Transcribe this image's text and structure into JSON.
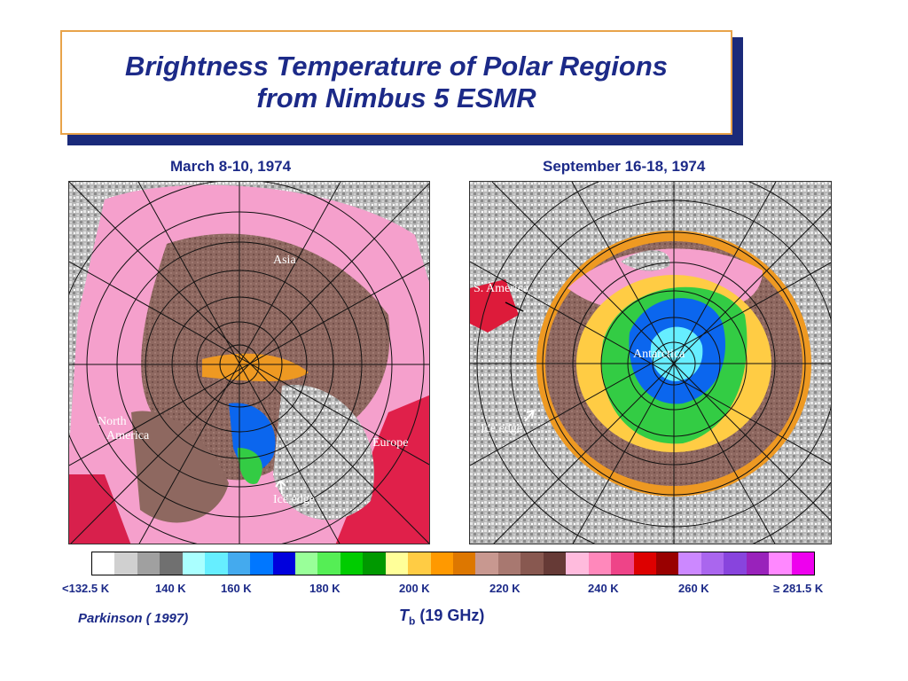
{
  "title": {
    "line1": "Brightness Temperature of Polar Regions",
    "line2": "from Nimbus 5 ESMR"
  },
  "panels": {
    "left": {
      "caption": "March 8-10, 1974",
      "labels": {
        "asia": "Asia",
        "north_america_1": "North",
        "north_america_2": "America",
        "europe": "Europe",
        "ice_edge": "Ice edge"
      }
    },
    "right": {
      "caption": "September 16-18, 1974",
      "labels": {
        "s_america": "S. America",
        "antarctica": "Antarctica",
        "ice_edge": "Ice edge"
      }
    }
  },
  "colorbar": {
    "colors": [
      "#ffffff",
      "#d0d0d0",
      "#a0a0a0",
      "#707070",
      "#aaffff",
      "#66eeff",
      "#44aaee",
      "#0077ff",
      "#0000dd",
      "#99ff99",
      "#55ee55",
      "#00cc00",
      "#009900",
      "#ffff99",
      "#ffcc44",
      "#ff9900",
      "#dd7700",
      "#c89890",
      "#a87870",
      "#885850",
      "#663a36",
      "#ffbbdd",
      "#ff88bb",
      "#ee4488",
      "#dd0000",
      "#990000",
      "#cc88ff",
      "#aa66ee",
      "#8844dd",
      "#9922bb",
      "#ff88ff",
      "#ee00ee"
    ],
    "ticks": [
      "<132.5 K",
      "140 K",
      "160 K",
      "180 K",
      "200 K",
      "220 K",
      "240 K",
      "260 K",
      "≥ 281.5 K"
    ]
  },
  "axis": {
    "symbol": "T",
    "subscript": "b",
    "suffix": " (19 GHz)"
  },
  "citation": "Parkinson ( 1997)"
}
